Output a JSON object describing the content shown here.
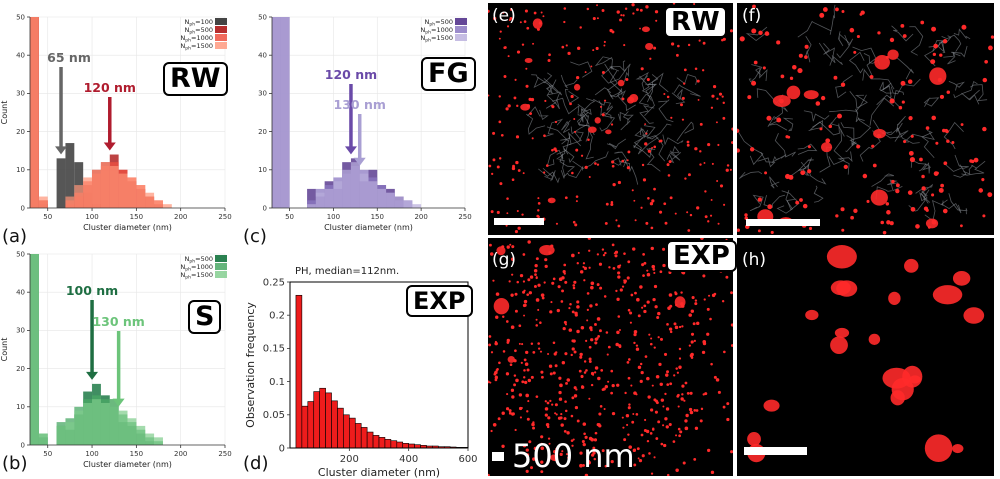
{
  "chart_data": [
    {
      "id": "a",
      "type": "bar",
      "panel_label": "(a)",
      "tag": "RW",
      "xlabel": "Cluster diameter (nm)",
      "ylabel": "Count",
      "xlim": [
        30,
        250
      ],
      "ylim": [
        0,
        50
      ],
      "bin_width": 10,
      "xticks": [
        50,
        100,
        150,
        200,
        250
      ],
      "yticks": [
        0,
        10,
        20,
        30,
        40,
        50
      ],
      "series": [
        {
          "name": "N_ph=100",
          "color": "#444444",
          "opacity": 0.9,
          "bins": [
            [
              30,
              50
            ],
            [
              40,
              1
            ],
            [
              50,
              0
            ],
            [
              60,
              13
            ],
            [
              70,
              17
            ],
            [
              80,
              12
            ],
            [
              90,
              4
            ],
            [
              100,
              1
            ]
          ]
        },
        {
          "name": "N_ph=500",
          "color": "#b22222",
          "opacity": 0.85,
          "bins": [
            [
              30,
              50
            ],
            [
              40,
              2
            ],
            [
              70,
              1
            ],
            [
              80,
              3
            ],
            [
              90,
              6
            ],
            [
              100,
              10
            ],
            [
              110,
              12
            ],
            [
              120,
              14
            ],
            [
              130,
              10
            ],
            [
              140,
              7
            ],
            [
              150,
              5
            ],
            [
              160,
              3
            ],
            [
              170,
              1
            ]
          ]
        },
        {
          "name": "N_ph=1000",
          "color": "#ef5040",
          "opacity": 0.75,
          "bins": [
            [
              30,
              50
            ],
            [
              40,
              2
            ],
            [
              70,
              2
            ],
            [
              80,
              4
            ],
            [
              90,
              7
            ],
            [
              100,
              9
            ],
            [
              110,
              11
            ],
            [
              120,
              12
            ],
            [
              130,
              10
            ],
            [
              140,
              8
            ],
            [
              150,
              6
            ],
            [
              160,
              3
            ],
            [
              170,
              2
            ]
          ]
        },
        {
          "name": "N_ph=1500",
          "color": "#ff9478",
          "opacity": 0.7,
          "bins": [
            [
              30,
              50
            ],
            [
              40,
              3
            ],
            [
              70,
              3
            ],
            [
              80,
              6
            ],
            [
              90,
              8
            ],
            [
              100,
              10
            ],
            [
              110,
              12
            ],
            [
              120,
              11
            ],
            [
              130,
              9
            ],
            [
              140,
              8
            ],
            [
              150,
              6
            ],
            [
              160,
              4
            ],
            [
              170,
              2
            ],
            [
              180,
              1
            ]
          ]
        }
      ],
      "annotations": [
        {
          "text": "65 nm",
          "x": 65,
          "color": "#666666"
        },
        {
          "text": "120 nm",
          "x": 120,
          "color": "#b01c2e"
        }
      ]
    },
    {
      "id": "c",
      "type": "bar",
      "panel_label": "(c)",
      "tag": "FG",
      "xlabel": "Cluster diameter (nm)",
      "ylabel": "",
      "xlim": [
        30,
        250
      ],
      "ylim": [
        0,
        50
      ],
      "bin_width": 10,
      "xticks": [
        50,
        100,
        150,
        200,
        250
      ],
      "yticks": [
        0,
        10,
        20,
        30,
        40,
        50
      ],
      "series": [
        {
          "name": "N_ph=500",
          "color": "#5c3d91",
          "opacity": 0.85,
          "bins": [
            [
              30,
              50
            ],
            [
              40,
              50
            ],
            [
              70,
              5
            ],
            [
              80,
              3
            ],
            [
              90,
              7
            ],
            [
              100,
              5
            ],
            [
              110,
              12
            ],
            [
              120,
              13
            ],
            [
              130,
              7
            ],
            [
              140,
              10
            ],
            [
              150,
              6
            ],
            [
              160,
              5
            ],
            [
              170,
              3
            ]
          ]
        },
        {
          "name": "N_ph=1000",
          "color": "#8b78c2",
          "opacity": 0.75,
          "bins": [
            [
              30,
              50
            ],
            [
              40,
              50
            ],
            [
              70,
              2
            ],
            [
              80,
              5
            ],
            [
              90,
              6
            ],
            [
              100,
              8
            ],
            [
              110,
              9
            ],
            [
              120,
              11
            ],
            [
              130,
              10
            ],
            [
              140,
              8
            ],
            [
              150,
              6
            ],
            [
              160,
              4
            ],
            [
              170,
              2
            ],
            [
              180,
              2
            ]
          ]
        },
        {
          "name": "N_ph=1500",
          "color": "#b8addc",
          "opacity": 0.7,
          "bins": [
            [
              30,
              50
            ],
            [
              40,
              50
            ],
            [
              70,
              1
            ],
            [
              80,
              4
            ],
            [
              90,
              5
            ],
            [
              100,
              7
            ],
            [
              110,
              10
            ],
            [
              120,
              12
            ],
            [
              130,
              9
            ],
            [
              140,
              7
            ],
            [
              150,
              5
            ],
            [
              160,
              4
            ],
            [
              170,
              3
            ],
            [
              180,
              2
            ],
            [
              190,
              1
            ]
          ]
        }
      ],
      "annotations": [
        {
          "text": "120 nm",
          "x": 120,
          "color": "#6a4aa8"
        },
        {
          "text": "130 nm",
          "x": 130,
          "color": "#a99fd3"
        }
      ]
    },
    {
      "id": "b",
      "type": "bar",
      "panel_label": "(b)",
      "tag": "S",
      "xlabel": "Cluster diameter (nm)",
      "ylabel": "Count",
      "xlim": [
        30,
        250
      ],
      "ylim": [
        0,
        50
      ],
      "bin_width": 10,
      "xticks": [
        50,
        100,
        150,
        200,
        250
      ],
      "yticks": [
        0,
        10,
        20,
        30,
        40,
        50
      ],
      "series": [
        {
          "name": "N_ph=500",
          "color": "#1f7a47",
          "opacity": 0.85,
          "bins": [
            [
              30,
              50
            ],
            [
              40,
              2
            ],
            [
              60,
              5
            ],
            [
              70,
              4
            ],
            [
              80,
              8
            ],
            [
              90,
              14
            ],
            [
              100,
              16
            ],
            [
              110,
              13
            ],
            [
              120,
              12
            ],
            [
              130,
              6
            ],
            [
              140,
              5
            ],
            [
              150,
              3
            ],
            [
              160,
              1
            ]
          ]
        },
        {
          "name": "N_ph=1000",
          "color": "#4aa865",
          "opacity": 0.75,
          "bins": [
            [
              30,
              50
            ],
            [
              40,
              3
            ],
            [
              60,
              6
            ],
            [
              70,
              7
            ],
            [
              80,
              10
            ],
            [
              90,
              12
            ],
            [
              100,
              13
            ],
            [
              110,
              12
            ],
            [
              120,
              10
            ],
            [
              130,
              8
            ],
            [
              140,
              6
            ],
            [
              150,
              4
            ],
            [
              160,
              2
            ],
            [
              170,
              1
            ]
          ]
        },
        {
          "name": "N_ph=1500",
          "color": "#7dcc8a",
          "opacity": 0.7,
          "bins": [
            [
              30,
              50
            ],
            [
              40,
              3
            ],
            [
              60,
              5
            ],
            [
              70,
              6
            ],
            [
              80,
              9
            ],
            [
              90,
              11
            ],
            [
              100,
              12
            ],
            [
              110,
              11
            ],
            [
              120,
              12
            ],
            [
              130,
              9
            ],
            [
              140,
              7
            ],
            [
              150,
              5
            ],
            [
              160,
              3
            ],
            [
              170,
              2
            ]
          ]
        }
      ],
      "annotations": [
        {
          "text": "100 nm",
          "x": 100,
          "color": "#1e6e42"
        },
        {
          "text": "130 nm",
          "x": 130,
          "color": "#6cc47a"
        }
      ]
    },
    {
      "id": "d",
      "type": "bar",
      "panel_label": "(d)",
      "tag": "EXP",
      "title": "PH, median=112nm.",
      "xlabel": "Cluster diameter (nm)",
      "ylabel": "Observation frequency",
      "xlim": [
        0,
        600
      ],
      "ylim": [
        0,
        0.25
      ],
      "bin_width": 20,
      "xticks": [
        200,
        400,
        600
      ],
      "yticks": [
        0,
        0.05,
        0.1,
        0.15,
        0.2,
        0.25
      ],
      "series": [
        {
          "name": "PH",
          "color": "#ee1c1c",
          "opacity": 1,
          "bins": [
            [
              20,
              0.23
            ],
            [
              40,
              0.063
            ],
            [
              60,
              0.07
            ],
            [
              80,
              0.085
            ],
            [
              100,
              0.09
            ],
            [
              120,
              0.083
            ],
            [
              140,
              0.071
            ],
            [
              160,
              0.06
            ],
            [
              180,
              0.05
            ],
            [
              200,
              0.045
            ],
            [
              220,
              0.037
            ],
            [
              240,
              0.031
            ],
            [
              260,
              0.024
            ],
            [
              280,
              0.019
            ],
            [
              300,
              0.016
            ],
            [
              320,
              0.013
            ],
            [
              340,
              0.011
            ],
            [
              360,
              0.009
            ],
            [
              380,
              0.007
            ],
            [
              400,
              0.006
            ],
            [
              420,
              0.005
            ],
            [
              440,
              0.004
            ],
            [
              460,
              0.003
            ],
            [
              480,
              0.003
            ],
            [
              500,
              0.002
            ],
            [
              520,
              0.002
            ],
            [
              540,
              0.0015
            ],
            [
              560,
              0.001
            ],
            [
              580,
              0.001
            ]
          ]
        }
      ]
    }
  ],
  "images": [
    {
      "label": "(e)",
      "tag": "RW"
    },
    {
      "label": "(f)",
      "tag": ""
    },
    {
      "label": "(g)",
      "tag": "EXP",
      "scalebar": "500 nm"
    },
    {
      "label": "(h)",
      "tag": ""
    }
  ]
}
